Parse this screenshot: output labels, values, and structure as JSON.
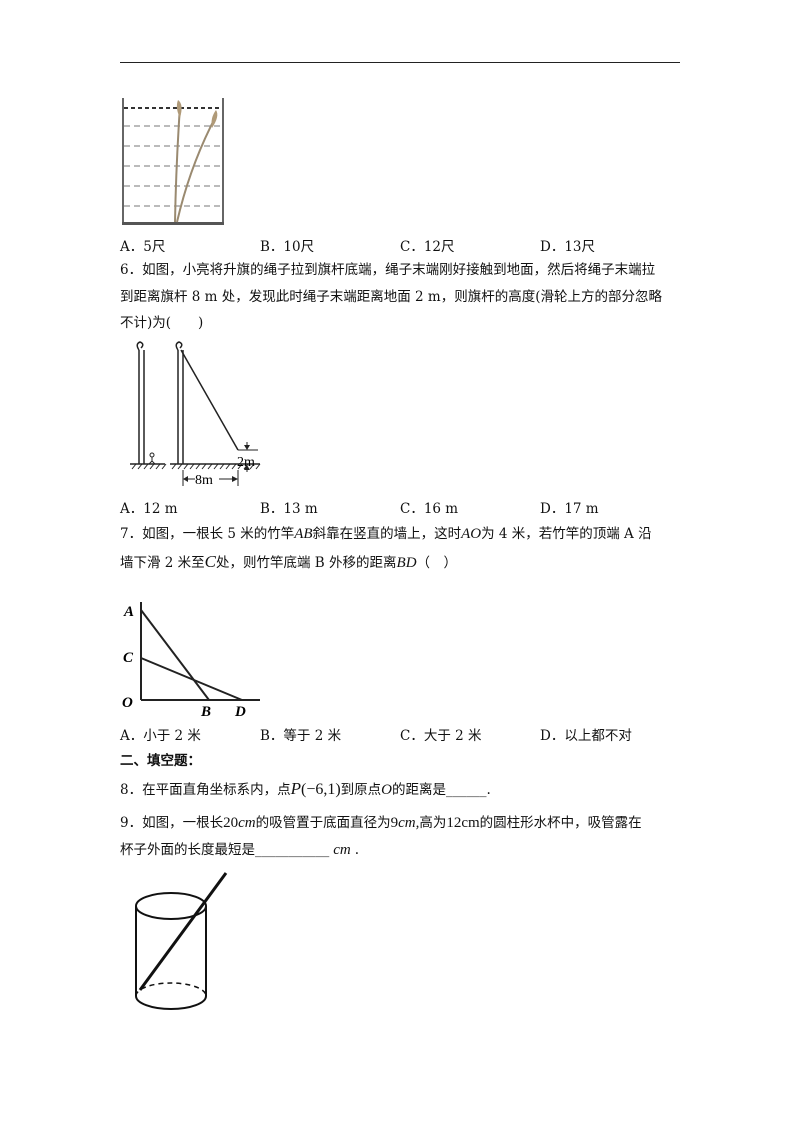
{
  "q5": {
    "options": [
      "A．5尺",
      "B．10尺",
      "C．12尺",
      "D．13尺"
    ]
  },
  "q6": {
    "line1": "6．如图，小亮将升旗的绳子拉到旗杆底端，绳子末端刚好接触到地面，然后将绳子末端拉",
    "line2": "到距离旗杆 8 m 处，发现此时绳子末端距离地面 2 m，则旗杆的高度(滑轮上方的部分忽略",
    "line3": "不计)为(　　)",
    "fig_label_2m": "2m",
    "fig_label_8m": "8m",
    "options": [
      "A．12 m",
      "B．13 m",
      "C．16 m",
      "D．17 m"
    ]
  },
  "q7": {
    "l1_a": "7．如图，一根长 5 米的竹竿",
    "l1_ab": "AB",
    "l1_b": "斜靠在竖直的墙上，这时",
    "l1_ao": "AO",
    "l1_c": "为 4 米，若竹竿的顶端 A 沿",
    "l2_a": "墙下滑 2 米至",
    "l2_c": "C",
    "l2_b": "处，则竹竿底端 B 外移的距离",
    "l2_bd": "BD",
    "l2_end": "（　）",
    "fig": {
      "A": "A",
      "C": "C",
      "O": "O",
      "B": "B",
      "D": "D"
    },
    "options": [
      "A．小于 2 米",
      "B．等于 2 米",
      "C．大于 2 米",
      "D．以上都不对"
    ]
  },
  "section2": {
    "title": "二、填空题："
  },
  "q8": {
    "a": "8．在平面直角坐标系内，点",
    "p": "P",
    "coords": "(−6,1)",
    "b": "到原点",
    "o": "O",
    "c": "的距离是______."
  },
  "q9": {
    "a": "9．如图，一根长",
    "len": "20",
    "cm1": "cm",
    "b": "的吸管置于底面直径为",
    "dia": "9",
    "cm2": "cm,",
    "c": "高为",
    "h": "12cm",
    "d": "的圆柱形水杯中，吸管露在",
    "line2": "杯子外面的长度最短是___________",
    "cm3": "cm",
    "end": "."
  }
}
